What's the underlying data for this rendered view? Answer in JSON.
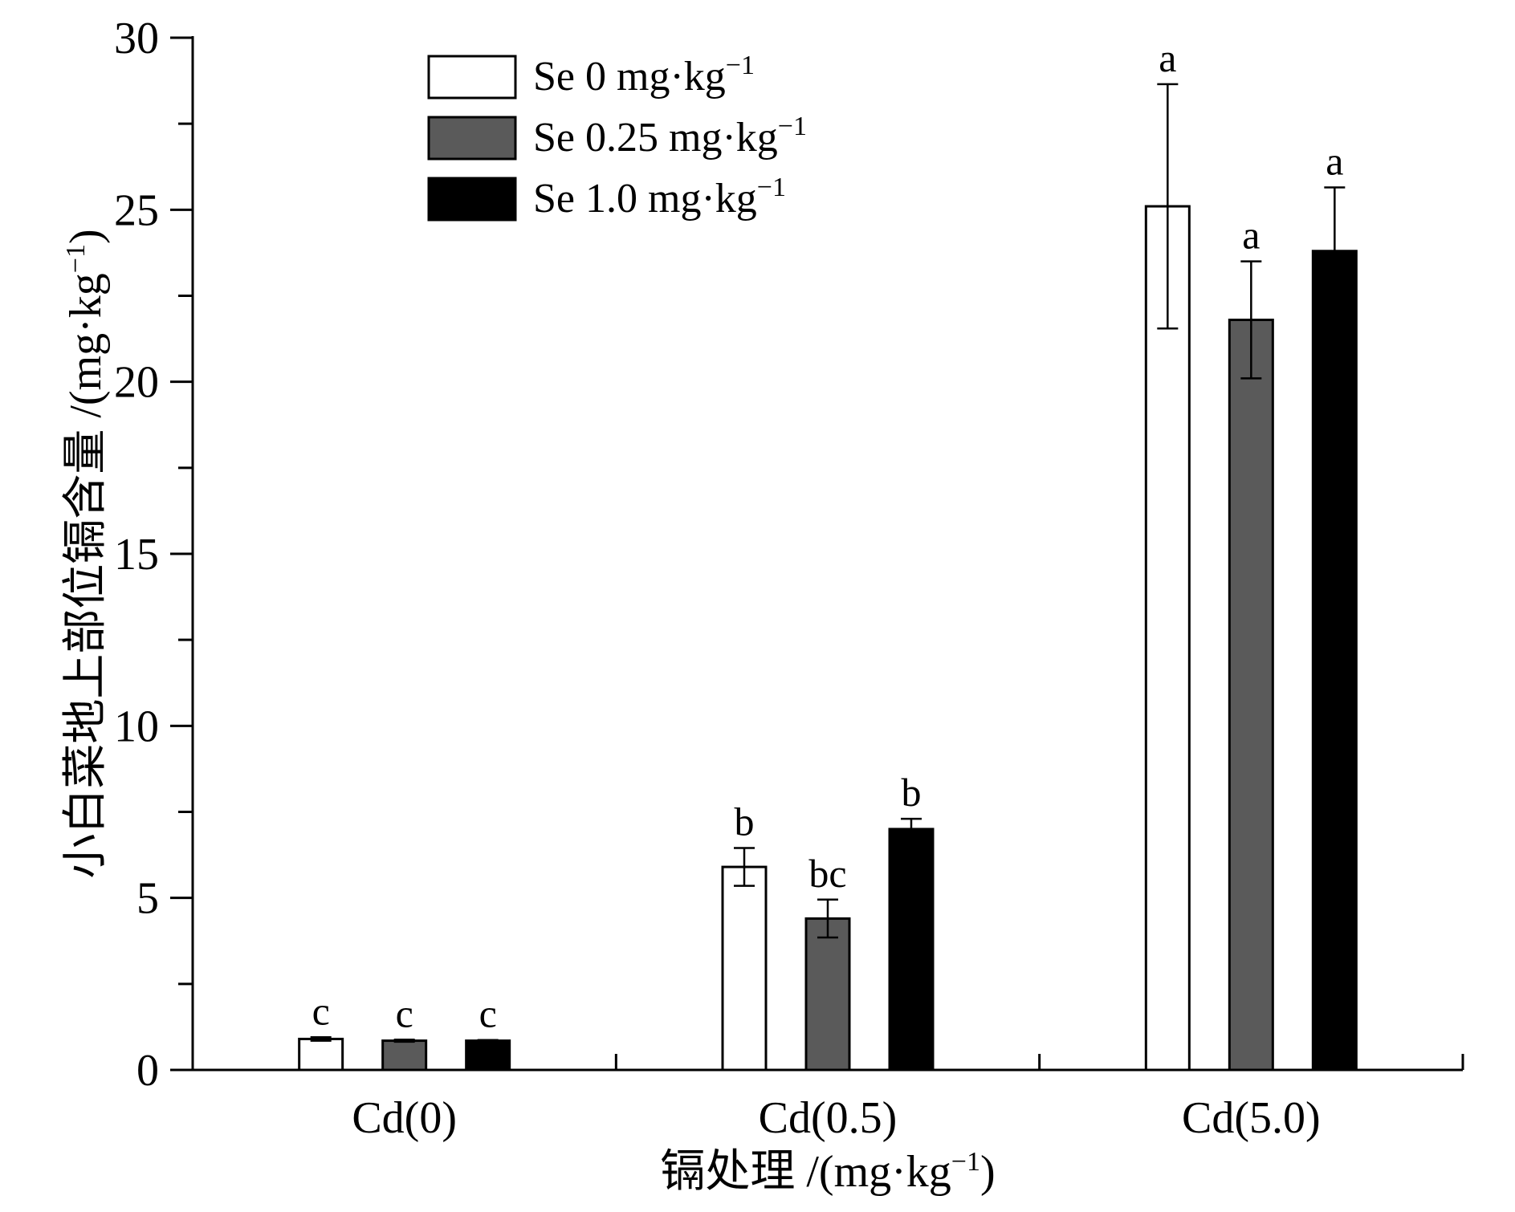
{
  "chart_data": {
    "type": "bar",
    "categories": [
      "Cd(0)",
      "Cd(0.5)",
      "Cd(5.0)"
    ],
    "series": [
      {
        "name": "Se 0 mg·kg−1",
        "color": "#ffffff",
        "values": [
          0.9,
          5.9,
          25.1
        ],
        "errors": [
          0.05,
          0.55,
          3.55
        ],
        "labels": [
          "c",
          "b",
          "a"
        ]
      },
      {
        "name": "Se 0.25 mg·kg−1",
        "color": "#5a5a5a",
        "values": [
          0.85,
          4.4,
          21.8
        ],
        "errors": [
          0.03,
          0.55,
          1.7
        ],
        "labels": [
          "c",
          "bc",
          "a"
        ]
      },
      {
        "name": "Se 1.0 mg·kg−1",
        "color": "#000000",
        "values": [
          0.85,
          7.0,
          23.8
        ],
        "errors": [
          0.02,
          0.3,
          1.85
        ],
        "labels": [
          "c",
          "b",
          "a"
        ]
      }
    ],
    "ylim": [
      0,
      30
    ],
    "yticks": [
      0,
      5,
      10,
      15,
      20,
      25,
      30
    ],
    "ylabel": "小白菜地上部位镉含量 /(mg·kg−1)",
    "xlabel": "镉处理 /(mg·kg−1)",
    "legend_position": "top-left",
    "grid": false
  }
}
